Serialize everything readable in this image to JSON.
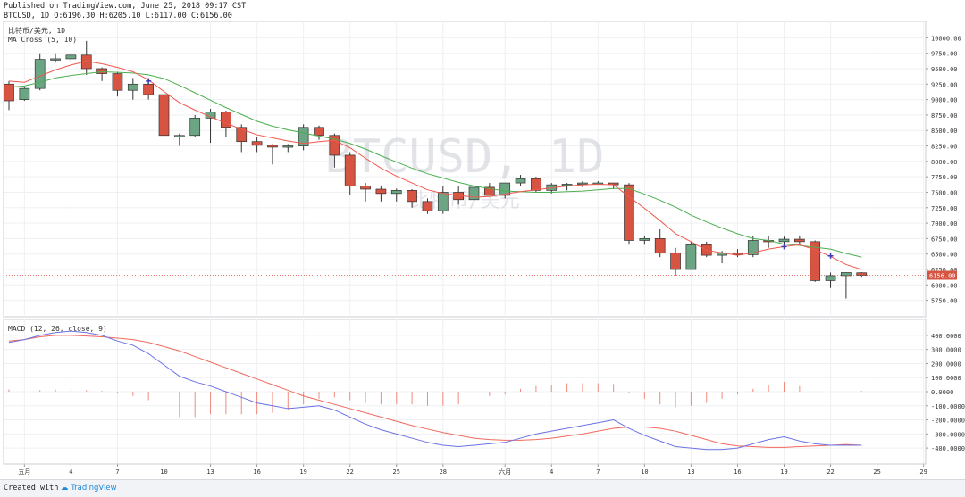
{
  "header": {
    "published": "Published on TradingView.com, June 25, 2018 09:17 CST",
    "ohlc": "BTCUSD, 1D O:6196.30 H:6205.10 L:6117.00 C:6156.00"
  },
  "footer": {
    "created_with": "Created with",
    "brand": "TradingView"
  },
  "colors": {
    "up": "#6ba583",
    "down": "#d75442",
    "ma_fast": "#f0584e",
    "ma_slow": "#4caf50",
    "macd": "#6b72e3",
    "signal": "#f26a5e",
    "hist": "#f08a7e",
    "grid": "#eef0f3"
  },
  "chart_data": [
    {
      "type": "candlestick",
      "legend": [
        "比特币/美元, 1D",
        "MA Cross (5, 10)"
      ],
      "watermark": "BTCUSD, 1D",
      "watermark_sub": "比特币/美元",
      "price_label": "6156.00",
      "yticks": [
        "10000.00",
        "9750.00",
        "9500.00",
        "9250.00",
        "9000.00",
        "8750.00",
        "8500.00",
        "8250.00",
        "8000.00",
        "7750.00",
        "7500.00",
        "7250.00",
        "7000.00",
        "6750.00",
        "6500.00",
        "6250.00",
        "6000.00",
        "5750.00"
      ],
      "ylim": [
        5600,
        10150
      ],
      "xlabels": [
        {
          "i": 1,
          "text": "五月"
        },
        {
          "i": 4,
          "text": "4"
        },
        {
          "i": 7,
          "text": "7"
        },
        {
          "i": 10,
          "text": "10"
        },
        {
          "i": 13,
          "text": "13"
        },
        {
          "i": 16,
          "text": "16"
        },
        {
          "i": 19,
          "text": "19"
        },
        {
          "i": 22,
          "text": "22"
        },
        {
          "i": 25,
          "text": "25"
        },
        {
          "i": 28,
          "text": "28"
        },
        {
          "i": 32,
          "text": "六月"
        },
        {
          "i": 35,
          "text": "4"
        },
        {
          "i": 38,
          "text": "7"
        },
        {
          "i": 41,
          "text": "10"
        },
        {
          "i": 44,
          "text": "13"
        },
        {
          "i": 47,
          "text": "16"
        },
        {
          "i": 50,
          "text": "19"
        },
        {
          "i": 53,
          "text": "22"
        },
        {
          "i": 56,
          "text": "25"
        },
        {
          "i": 59,
          "text": "29"
        }
      ],
      "candles": [
        [
          9250,
          9300,
          8830,
          8980
        ],
        [
          9000,
          9200,
          8980,
          9180
        ],
        [
          9180,
          9750,
          9150,
          9650
        ],
        [
          9650,
          9750,
          9600,
          9660
        ],
        [
          9660,
          9750,
          9620,
          9720
        ],
        [
          9720,
          9950,
          9400,
          9500
        ],
        [
          9500,
          9520,
          9300,
          9420
        ],
        [
          9420,
          9450,
          9050,
          9150
        ],
        [
          9150,
          9350,
          9000,
          9250
        ],
        [
          9250,
          9350,
          9000,
          9080
        ],
        [
          9080,
          9100,
          8400,
          8420
        ],
        [
          8420,
          8450,
          8250,
          8420
        ],
        [
          8420,
          8750,
          8400,
          8700
        ],
        [
          8700,
          8850,
          8300,
          8800
        ],
        [
          8800,
          8820,
          8400,
          8550
        ],
        [
          8550,
          8600,
          8150,
          8320
        ],
        [
          8320,
          8400,
          8150,
          8260
        ],
        [
          8260,
          8280,
          7950,
          8230
        ],
        [
          8230,
          8280,
          8150,
          8250
        ],
        [
          8250,
          8600,
          8180,
          8550
        ],
        [
          8550,
          8580,
          8350,
          8420
        ],
        [
          8420,
          8450,
          7900,
          8100
        ],
        [
          8100,
          8150,
          7450,
          7600
        ],
        [
          7600,
          7650,
          7350,
          7550
        ],
        [
          7550,
          7600,
          7350,
          7480
        ],
        [
          7480,
          7560,
          7350,
          7530
        ],
        [
          7530,
          7550,
          7250,
          7350
        ],
        [
          7350,
          7400,
          7150,
          7200
        ],
        [
          7200,
          7600,
          7150,
          7500
        ],
        [
          7500,
          7600,
          7300,
          7380
        ],
        [
          7380,
          7600,
          7350,
          7580
        ],
        [
          7580,
          7650,
          7450,
          7450
        ],
        [
          7450,
          7650,
          7400,
          7650
        ],
        [
          7650,
          7780,
          7600,
          7720
        ],
        [
          7720,
          7750,
          7500,
          7530
        ],
        [
          7530,
          7650,
          7480,
          7620
        ],
        [
          7620,
          7650,
          7530,
          7630
        ],
        [
          7630,
          7680,
          7580,
          7650
        ],
        [
          7650,
          7680,
          7620,
          7650
        ],
        [
          7650,
          7650,
          7550,
          7620
        ],
        [
          7620,
          7650,
          6650,
          6720
        ],
        [
          6720,
          6800,
          6650,
          6750
        ],
        [
          6750,
          6900,
          6450,
          6520
        ],
        [
          6520,
          6600,
          6150,
          6250
        ],
        [
          6250,
          6700,
          6250,
          6650
        ],
        [
          6650,
          6700,
          6450,
          6480
        ],
        [
          6480,
          6550,
          6350,
          6520
        ],
        [
          6520,
          6580,
          6450,
          6490
        ],
        [
          6490,
          6800,
          6450,
          6720
        ],
        [
          6720,
          6800,
          6600,
          6700
        ],
        [
          6700,
          6780,
          6600,
          6740
        ],
        [
          6740,
          6800,
          6650,
          6700
        ],
        [
          6700,
          6720,
          6050,
          6070
        ],
        [
          6070,
          6200,
          5950,
          6150
        ],
        [
          6150,
          6200,
          5780,
          6200
        ],
        [
          6196.3,
          6205.1,
          6117,
          6156
        ]
      ],
      "ma5": [
        9300,
        9280,
        9380,
        9480,
        9560,
        9620,
        9580,
        9520,
        9450,
        9320,
        9130,
        8950,
        8830,
        8720,
        8620,
        8520,
        8430,
        8380,
        8330,
        8290,
        8320,
        8340,
        8220,
        8050,
        7890,
        7760,
        7650,
        7540,
        7480,
        7450,
        7420,
        7430,
        7470,
        7510,
        7540,
        7570,
        7600,
        7620,
        7630,
        7620,
        7430,
        7240,
        7040,
        6830,
        6700,
        6560,
        6520,
        6480,
        6520,
        6580,
        6620,
        6650,
        6570,
        6460,
        6330,
        6250
      ],
      "ma10": [
        9200,
        9220,
        9280,
        9350,
        9390,
        9420,
        9450,
        9440,
        9430,
        9400,
        9340,
        9230,
        9110,
        8990,
        8870,
        8760,
        8650,
        8570,
        8510,
        8460,
        8410,
        8360,
        8290,
        8200,
        8090,
        7990,
        7890,
        7800,
        7730,
        7660,
        7600,
        7560,
        7520,
        7510,
        7500,
        7500,
        7510,
        7520,
        7540,
        7560,
        7560,
        7470,
        7370,
        7260,
        7130,
        7020,
        6920,
        6830,
        6750,
        6720,
        6660,
        6640,
        6610,
        6580,
        6510,
        6450
      ],
      "crosses": [
        {
          "i": 9,
          "v": 9300
        },
        {
          "i": 50,
          "v": 6620
        },
        {
          "i": 53,
          "v": 6470
        }
      ]
    },
    {
      "type": "macd",
      "legend": "MACD (12, 26, close, 9)",
      "yticks": [
        "400.0000",
        "300.0000",
        "200.0000",
        "100.0000",
        "0.0000",
        "-100.0000",
        "-200.0000",
        "-300.0000",
        "-400.0000"
      ],
      "ylim": [
        -450,
        450
      ],
      "macd": [
        350,
        370,
        400,
        420,
        430,
        420,
        400,
        360,
        330,
        270,
        190,
        110,
        70,
        40,
        0,
        -40,
        -80,
        -100,
        -120,
        -110,
        -100,
        -130,
        -180,
        -230,
        -270,
        -300,
        -330,
        -360,
        -380,
        -390,
        -380,
        -370,
        -360,
        -330,
        -300,
        -280,
        -260,
        -240,
        -220,
        -200,
        -260,
        -310,
        -350,
        -390,
        -400,
        -410,
        -410,
        -400,
        -370,
        -340,
        -320,
        -350,
        -370,
        -380,
        -380,
        -380
      ],
      "signal": [
        360,
        370,
        390,
        400,
        400,
        395,
        390,
        380,
        370,
        350,
        320,
        290,
        250,
        210,
        170,
        130,
        90,
        50,
        10,
        -30,
        -60,
        -90,
        -120,
        -150,
        -180,
        -210,
        -240,
        -265,
        -290,
        -310,
        -330,
        -340,
        -345,
        -345,
        -340,
        -330,
        -315,
        -300,
        -280,
        -260,
        -250,
        -250,
        -260,
        -280,
        -310,
        -340,
        -370,
        -385,
        -390,
        -395,
        -395,
        -390,
        -385,
        -380,
        -375,
        -380
      ],
      "hist": [
        15,
        0,
        10,
        15,
        25,
        10,
        5,
        -10,
        -30,
        -60,
        -120,
        -180,
        -180,
        -160,
        -160,
        -160,
        -160,
        -150,
        -130,
        -90,
        -50,
        -40,
        -60,
        -80,
        -90,
        -90,
        -90,
        -100,
        -100,
        -90,
        -60,
        -30,
        -20,
        20,
        40,
        50,
        60,
        60,
        60,
        55,
        -10,
        -50,
        -90,
        -110,
        -100,
        -80,
        -50,
        -20,
        20,
        50,
        70,
        40,
        0,
        0,
        0,
        5
      ]
    }
  ]
}
